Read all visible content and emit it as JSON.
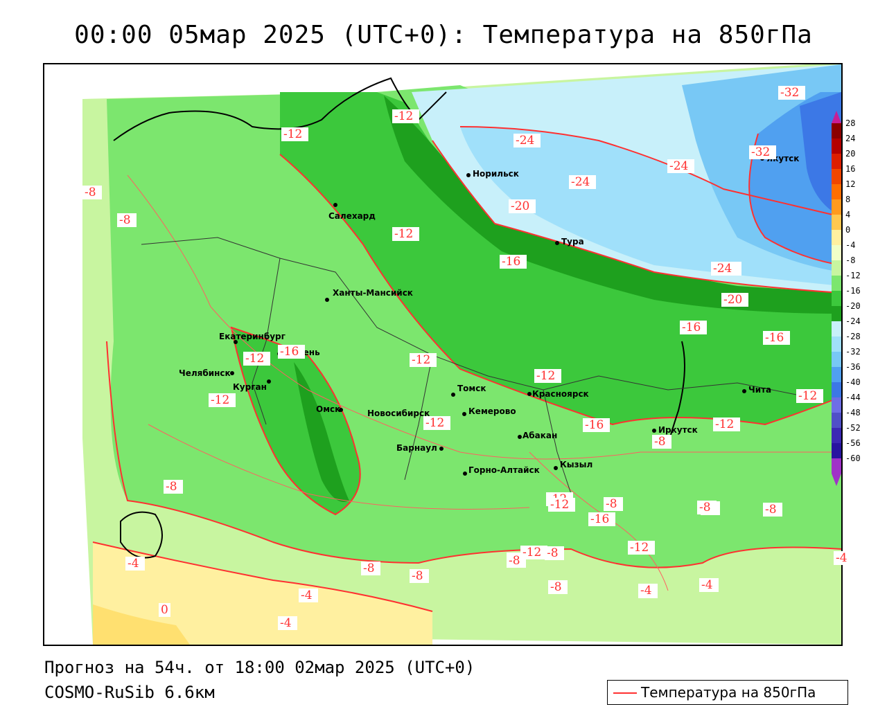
{
  "title": "00:00 05мар 2025 (UTC+0): Температура на 850гПа",
  "footer": {
    "forecast": "Прогноз на 54ч. от 18:00 02мар 2025 (UTC+0)",
    "model": "COSMO-RuSib 6.6км"
  },
  "legend": {
    "label": "Температура на 850гПа",
    "line_color": "#ff3030"
  },
  "colorbar": {
    "levels": [
      "28",
      "24",
      "20",
      "16",
      "12",
      "8",
      "4",
      "0",
      "-4",
      "-8",
      "-12",
      "-16",
      "-20",
      "-24",
      "-28",
      "-32",
      "-36",
      "-40",
      "-44",
      "-48",
      "-52",
      "-56",
      "-60"
    ],
    "colors": [
      "#8b0000",
      "#b40000",
      "#dc1e00",
      "#f04600",
      "#ff6e00",
      "#ff9a1e",
      "#ffc850",
      "#fff0a0",
      "#f0ffc8",
      "#c8f5a0",
      "#7ce66e",
      "#3cc83c",
      "#1ea01e",
      "#c8f0fa",
      "#a0e0fa",
      "#78c8f5",
      "#50a0f0",
      "#3c78e6",
      "#6e6ee6",
      "#5050c8",
      "#3c28b4",
      "#2814a0",
      "#a032c8"
    ]
  },
  "cities": [
    {
      "name": "Салехард"
    },
    {
      "name": "Норильск"
    },
    {
      "name": "Тура"
    },
    {
      "name": "Ханты-Мансийск"
    },
    {
      "name": "Екатеринбург"
    },
    {
      "name": "Тюмень"
    },
    {
      "name": "Челябинск"
    },
    {
      "name": "Курган"
    },
    {
      "name": "Омск"
    },
    {
      "name": "Новосибирск"
    },
    {
      "name": "Томск"
    },
    {
      "name": "Кемерово"
    },
    {
      "name": "Красноярск"
    },
    {
      "name": "Абакан"
    },
    {
      "name": "Барнаул"
    },
    {
      "name": "Горно-Алтайск"
    },
    {
      "name": "Кызыл"
    },
    {
      "name": "Иркутск"
    },
    {
      "name": "Чита"
    },
    {
      "name": "Якутск"
    }
  ],
  "isotherm_labels": [
    "-12",
    "-12",
    "-8",
    "-8",
    "-12",
    "-16",
    "-20",
    "-24",
    "-24",
    "-24",
    "-32",
    "-32",
    "-16",
    "-20",
    "-24",
    "-16",
    "-16",
    "-12",
    "-12",
    "-12",
    "-16",
    "-12",
    "-12",
    "-12",
    "-12",
    "-16",
    "-8",
    "-8",
    "-8",
    "-4",
    "-4",
    "-8",
    "-8",
    "-8",
    "-8",
    "-12",
    "-12",
    "-16",
    "-12",
    "-8",
    "-8",
    "-8",
    "-4",
    "-4",
    "-4",
    "0",
    "-4",
    "-8",
    "-8",
    "-4",
    "-12"
  ],
  "colors": {
    "light_green": "#c8f5a0",
    "mid_green": "#7ce66e",
    "green": "#3cc83c",
    "dark_green": "#1ea01e",
    "pale_blue": "#c8f0fa",
    "light_blue": "#a0e0fa",
    "blue": "#78c8f5",
    "deep_blue": "#50a0f0",
    "pale_yellow": "#fff0a0",
    "yellow": "#ffe070",
    "isoline": "#ff3030"
  }
}
